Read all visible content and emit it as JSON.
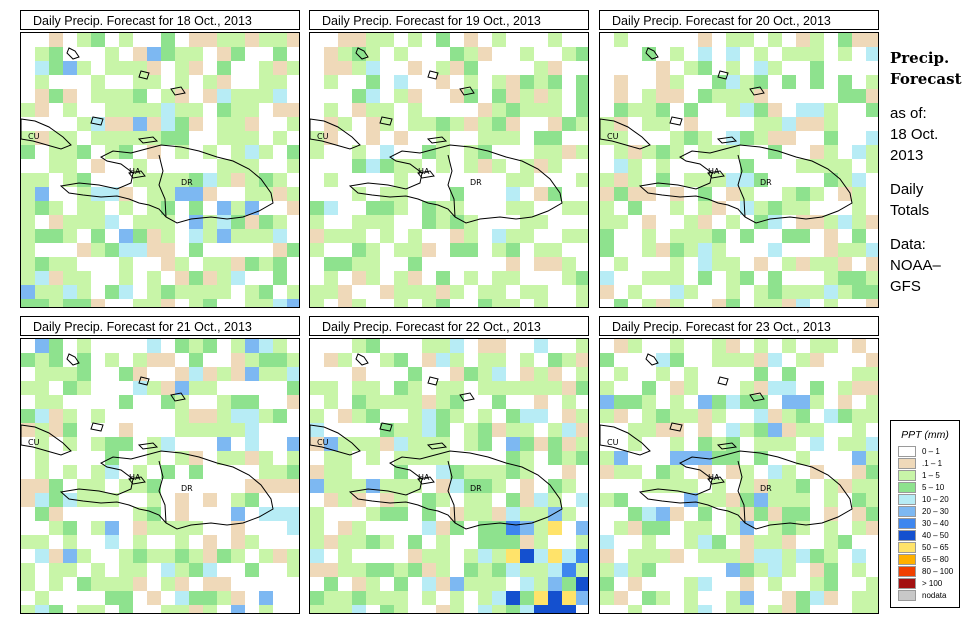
{
  "panels": [
    {
      "title": "Daily Precip. Forecast for  18 Oct., 2013",
      "date": "18 Oct., 2013",
      "seed": 11,
      "dry": 0.34
    },
    {
      "title": "Daily Precip. Forecast for  19 Oct., 2013",
      "date": "19 Oct., 2013",
      "seed": 23,
      "dry": 0.45
    },
    {
      "title": "Daily Precip. Forecast for  20 Oct., 2013",
      "date": "20 Oct., 2013",
      "seed": 37,
      "dry": 0.42
    },
    {
      "title": "Daily Precip. Forecast for  21 Oct., 2013",
      "date": "21 Oct., 2013",
      "seed": 41,
      "dry": 0.4
    },
    {
      "title": "Daily Precip. Forecast for  22 Oct., 2013",
      "date": "22 Oct., 2013",
      "seed": 53,
      "dry": 0.3
    },
    {
      "title": "Daily Precip. Forecast for  23 Oct., 2013",
      "date": "23 Oct., 2013",
      "seed": 67,
      "dry": 0.35
    }
  ],
  "map_labels": {
    "cuba": "CU",
    "haiti": "HA",
    "dominican_republic": "DR"
  },
  "sidebar": {
    "title_line1": "Precip.",
    "title_line2": "Forecast",
    "asof_line1": "as of:",
    "asof_line2": "18 Oct.",
    "asof_line3": "2013",
    "period_line1": "Daily",
    "period_line2": "Totals",
    "source_line1": "Data:",
    "source_line2": "NOAA–",
    "source_line3": "GFS"
  },
  "legend": {
    "title": "PPT (mm)",
    "items": [
      {
        "label": "0 – 1",
        "color": "#ffffff"
      },
      {
        "label": ".1 – 1",
        "color": "#efd9b9"
      },
      {
        "label": "1 – 5",
        "color": "#c8f5a8"
      },
      {
        "label": "5 – 10",
        "color": "#8ee28e"
      },
      {
        "label": "10 – 20",
        "color": "#b7ecf5"
      },
      {
        "label": "20 – 30",
        "color": "#7db8f2"
      },
      {
        "label": "30 – 40",
        "color": "#3e86ee"
      },
      {
        "label": "40 – 50",
        "color": "#1450cf"
      },
      {
        "label": "50 – 65",
        "color": "#ffe36a"
      },
      {
        "label": "65 – 80",
        "color": "#ffb000"
      },
      {
        "label": "80 – 100",
        "color": "#f04000"
      },
      {
        "label": "> 100",
        "color": "#a31010"
      },
      {
        "label": "nodata",
        "color": "#c8c8c8"
      }
    ]
  }
}
